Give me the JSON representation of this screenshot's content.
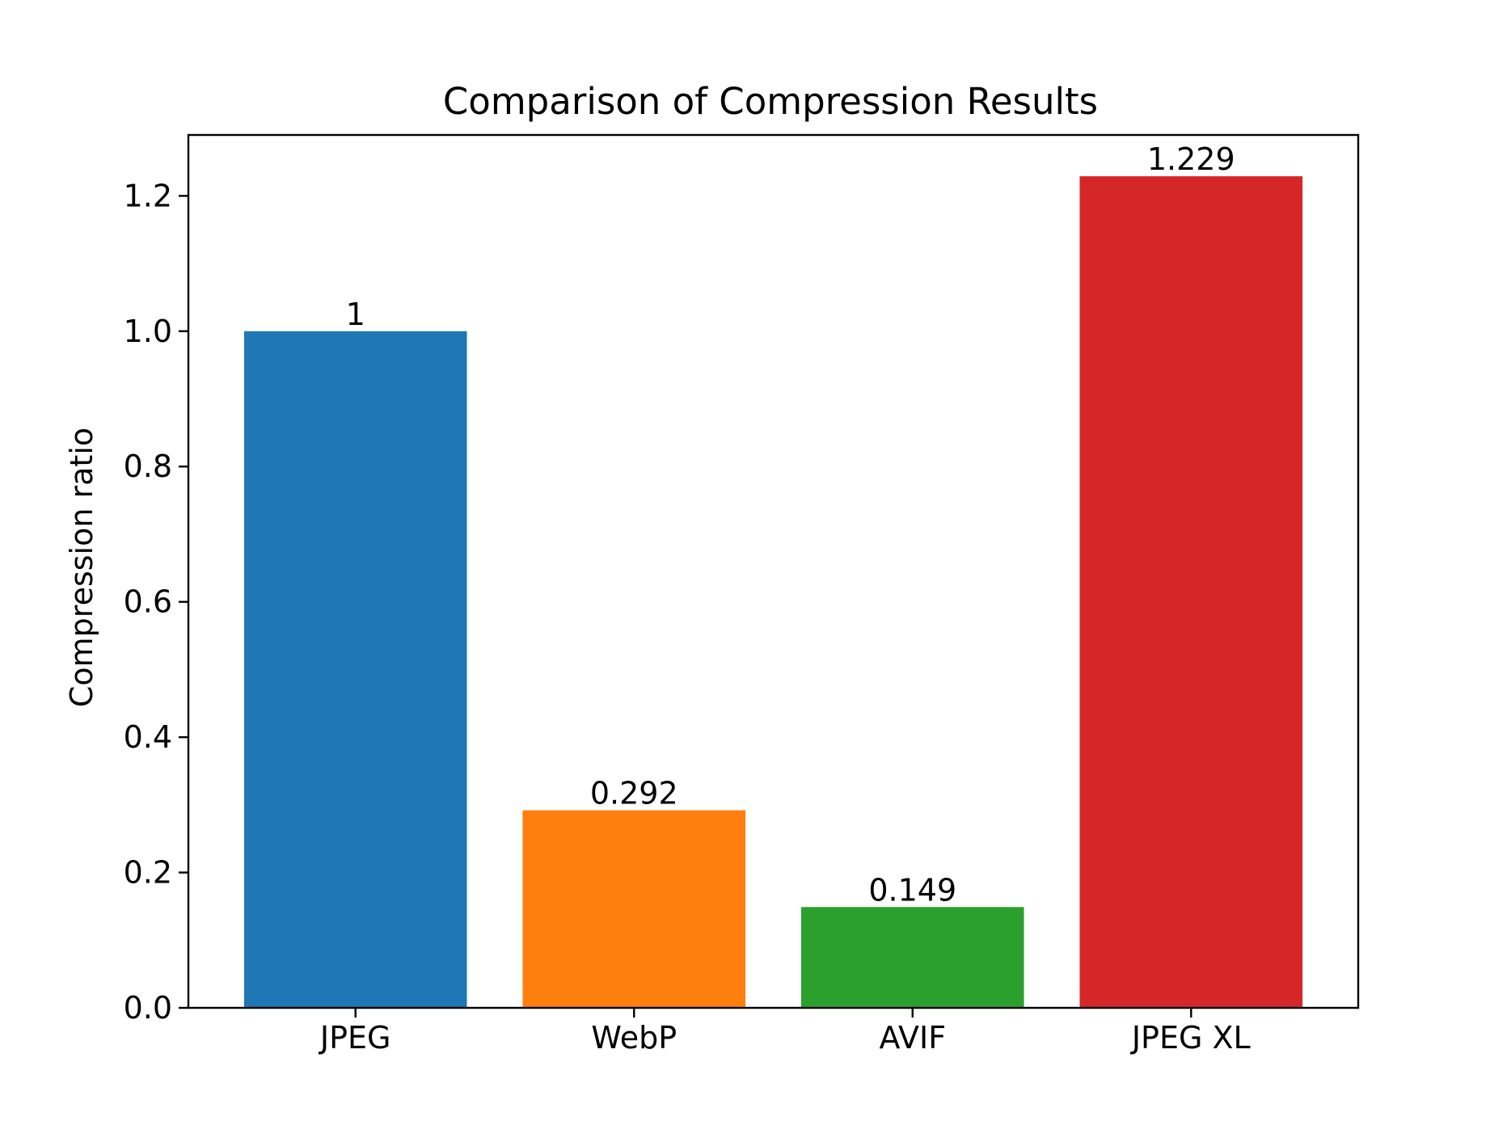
{
  "chart_data": {
    "type": "bar",
    "title": "Comparison of Compression Results",
    "xlabel": "",
    "ylabel": "Compression ratio",
    "categories": [
      "JPEG",
      "WebP",
      "AVIF",
      "JPEG XL"
    ],
    "values": [
      1,
      0.292,
      0.149,
      1.229
    ],
    "value_labels": [
      "1",
      "0.292",
      "0.149",
      "1.229"
    ],
    "colors": [
      "#1f77b4",
      "#ff7f0e",
      "#2ca02c",
      "#d62728"
    ],
    "ylim": [
      0,
      1.29
    ],
    "yticks": [
      0.0,
      0.2,
      0.4,
      0.6,
      0.8,
      1.0,
      1.2
    ],
    "ytick_labels": [
      "0.0",
      "0.2",
      "0.4",
      "0.6",
      "0.8",
      "1.0",
      "1.2"
    ],
    "grid": false,
    "legend": "none"
  }
}
